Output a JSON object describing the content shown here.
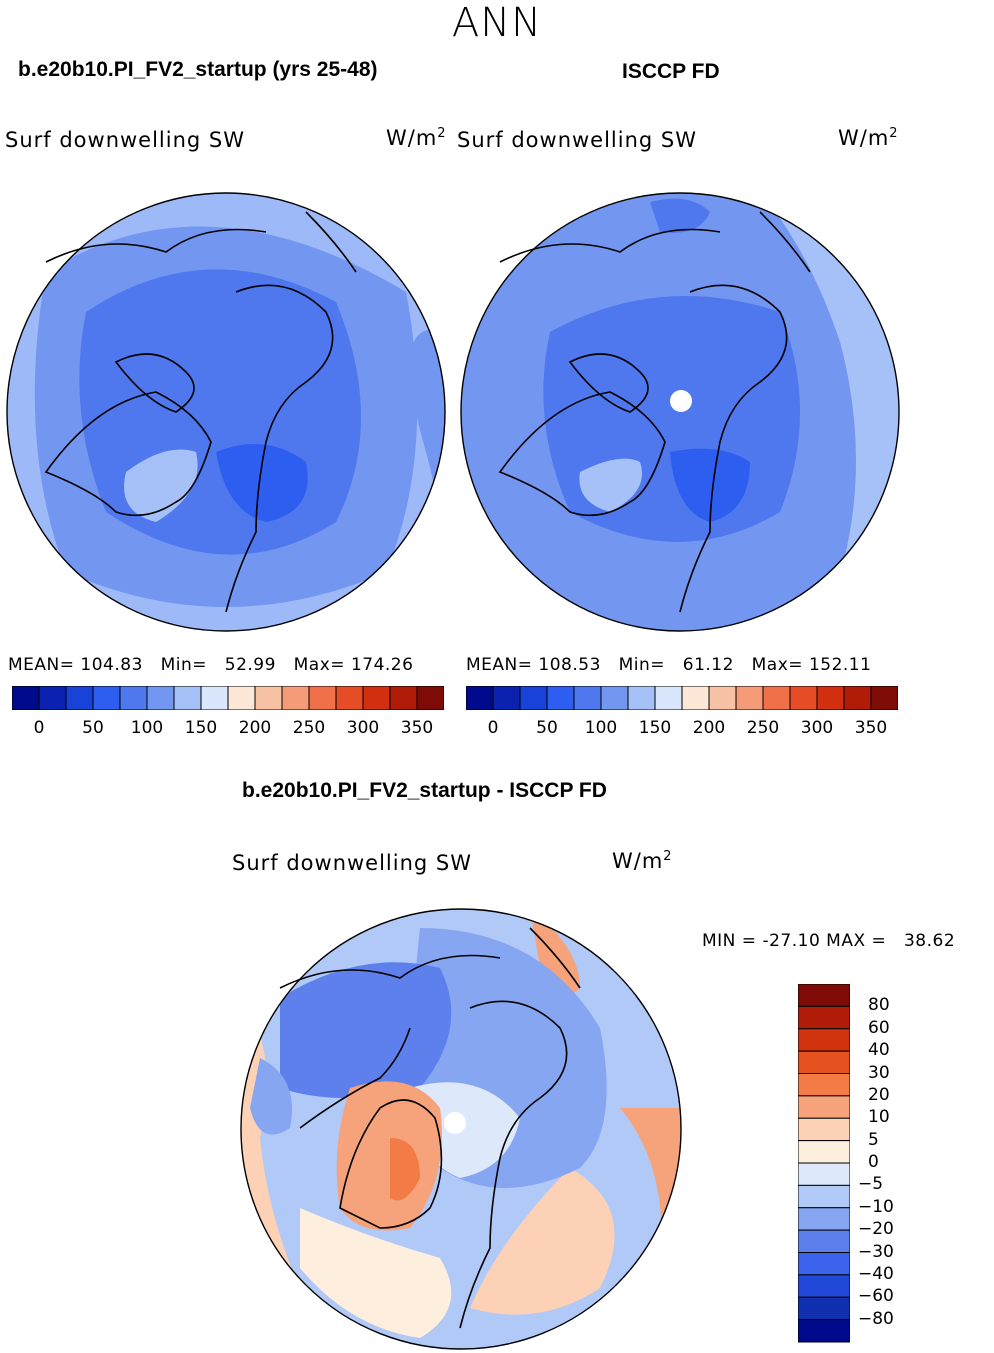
{
  "season_title": "ANN",
  "panels": [
    {
      "case_title": "b.e20b10.PI_FV2_startup (yrs 25-48)",
      "variable": "Surf downwelling SW",
      "units_base": "W/m",
      "units_exp": "2",
      "stats": {
        "mean_label": "MEAN=",
        "mean": "104.83",
        "min_label": "Min=",
        "min": "52.99",
        "max_label": "Max=",
        "max": "174.26"
      },
      "colorbar_ticks": [
        "0",
        "50",
        "100",
        "150",
        "200",
        "250",
        "300",
        "350"
      ]
    },
    {
      "case_title": "ISCCP FD",
      "variable": "Surf downwelling SW",
      "units_base": "W/m",
      "units_exp": "2",
      "stats": {
        "mean_label": "MEAN=",
        "mean": "108.53",
        "min_label": "Min=",
        "min": "61.12",
        "max_label": "Max=",
        "max": "152.11"
      },
      "colorbar_ticks": [
        "0",
        "50",
        "100",
        "150",
        "200",
        "250",
        "300",
        "350"
      ]
    }
  ],
  "diff_panel": {
    "title": "b.e20b10.PI_FV2_startup - ISCCP FD",
    "variable": "Surf downwelling SW",
    "units_base": "W/m",
    "units_exp": "2",
    "min_label": "MIN =",
    "min": "-27.10",
    "max_label": "MAX =",
    "max": "38.62",
    "colorbar_ticks": [
      "80",
      "60",
      "40",
      "30",
      "20",
      "10",
      "5",
      "0",
      "-5",
      "-10",
      "-20",
      "-30",
      "-40",
      "-60",
      "-80"
    ]
  },
  "colors": {
    "abs_scale": [
      "#000a8c",
      "#0b22b0",
      "#1842d8",
      "#2e5ef0",
      "#4f78ee",
      "#7396f0",
      "#a6c0f8",
      "#d9e6fb",
      "#fde7d6",
      "#f8c3a5",
      "#f59b78",
      "#f0704a",
      "#e64d26",
      "#d22e10",
      "#b01c08",
      "#7e0b05"
    ],
    "diff_scale": [
      "#7e0b05",
      "#b01c08",
      "#d2330f",
      "#e5521f",
      "#f37b46",
      "#f6a37c",
      "#fcd1b6",
      "#fdeede",
      "#dde9fa",
      "#b1c9f7",
      "#86a6f1",
      "#5d80ec",
      "#3c63ec",
      "#2148d8",
      "#1030b0",
      "#000a8c"
    ],
    "land_outline": "#000000"
  }
}
